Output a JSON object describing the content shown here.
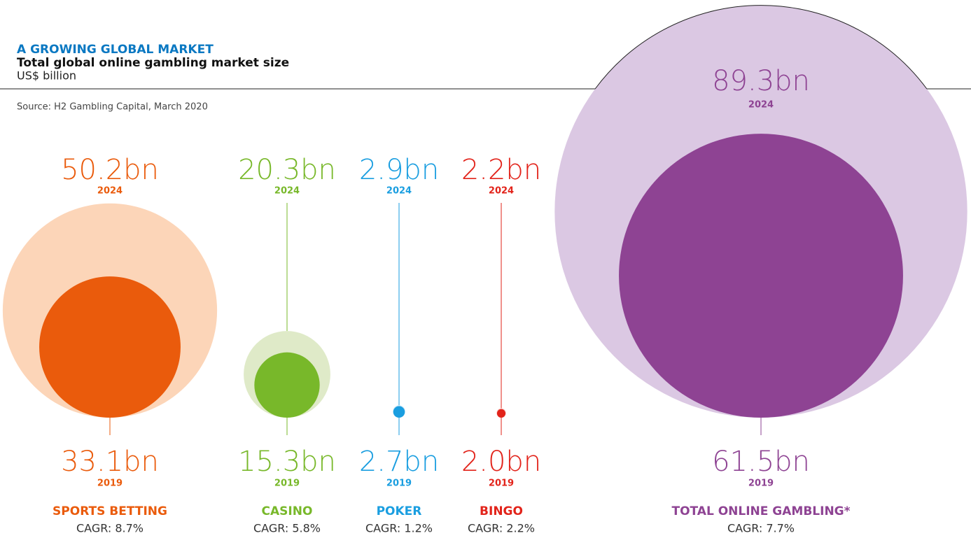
{
  "chart_data": {
    "type": "bubble",
    "title": "A GROWING GLOBAL MARKET",
    "subtitle": "Total global online gambling market size",
    "unit": "US$ billion",
    "source": "Source: H2 Gambling Capital, March 2020",
    "categories": [
      "SPORTS BETTING",
      "CASINO",
      "POKER",
      "BINGO",
      "TOTAL ONLINE GAMBLING*"
    ],
    "cagr_labels": [
      "CAGR: 8.7%",
      "CAGR: 5.8%",
      "CAGR: 1.2%",
      "CAGR: 2.2%",
      "CAGR: 7.7%"
    ],
    "colors": [
      "#ea5b0c",
      "#78b82a",
      "#1a9ee0",
      "#e2231a",
      "#8e4393"
    ],
    "light_colors": [
      "#fcd5b8",
      "#dfeac8",
      "#c9e7f7",
      "#f8cdc9",
      "#dbc8e3"
    ],
    "series": [
      {
        "name": "2024",
        "values": [
          50.2,
          20.3,
          2.9,
          2.2,
          89.3
        ],
        "value_labels": [
          "50.2bn",
          "20.3bn",
          "2.9bn",
          "2.2bn",
          "89.3bn"
        ]
      },
      {
        "name": "2019",
        "values": [
          33.1,
          15.3,
          2.7,
          2.0,
          61.5
        ],
        "value_labels": [
          "33.1bn",
          "15.3bn",
          "2.7bn",
          "2.0bn",
          "61.5bn"
        ]
      }
    ]
  }
}
